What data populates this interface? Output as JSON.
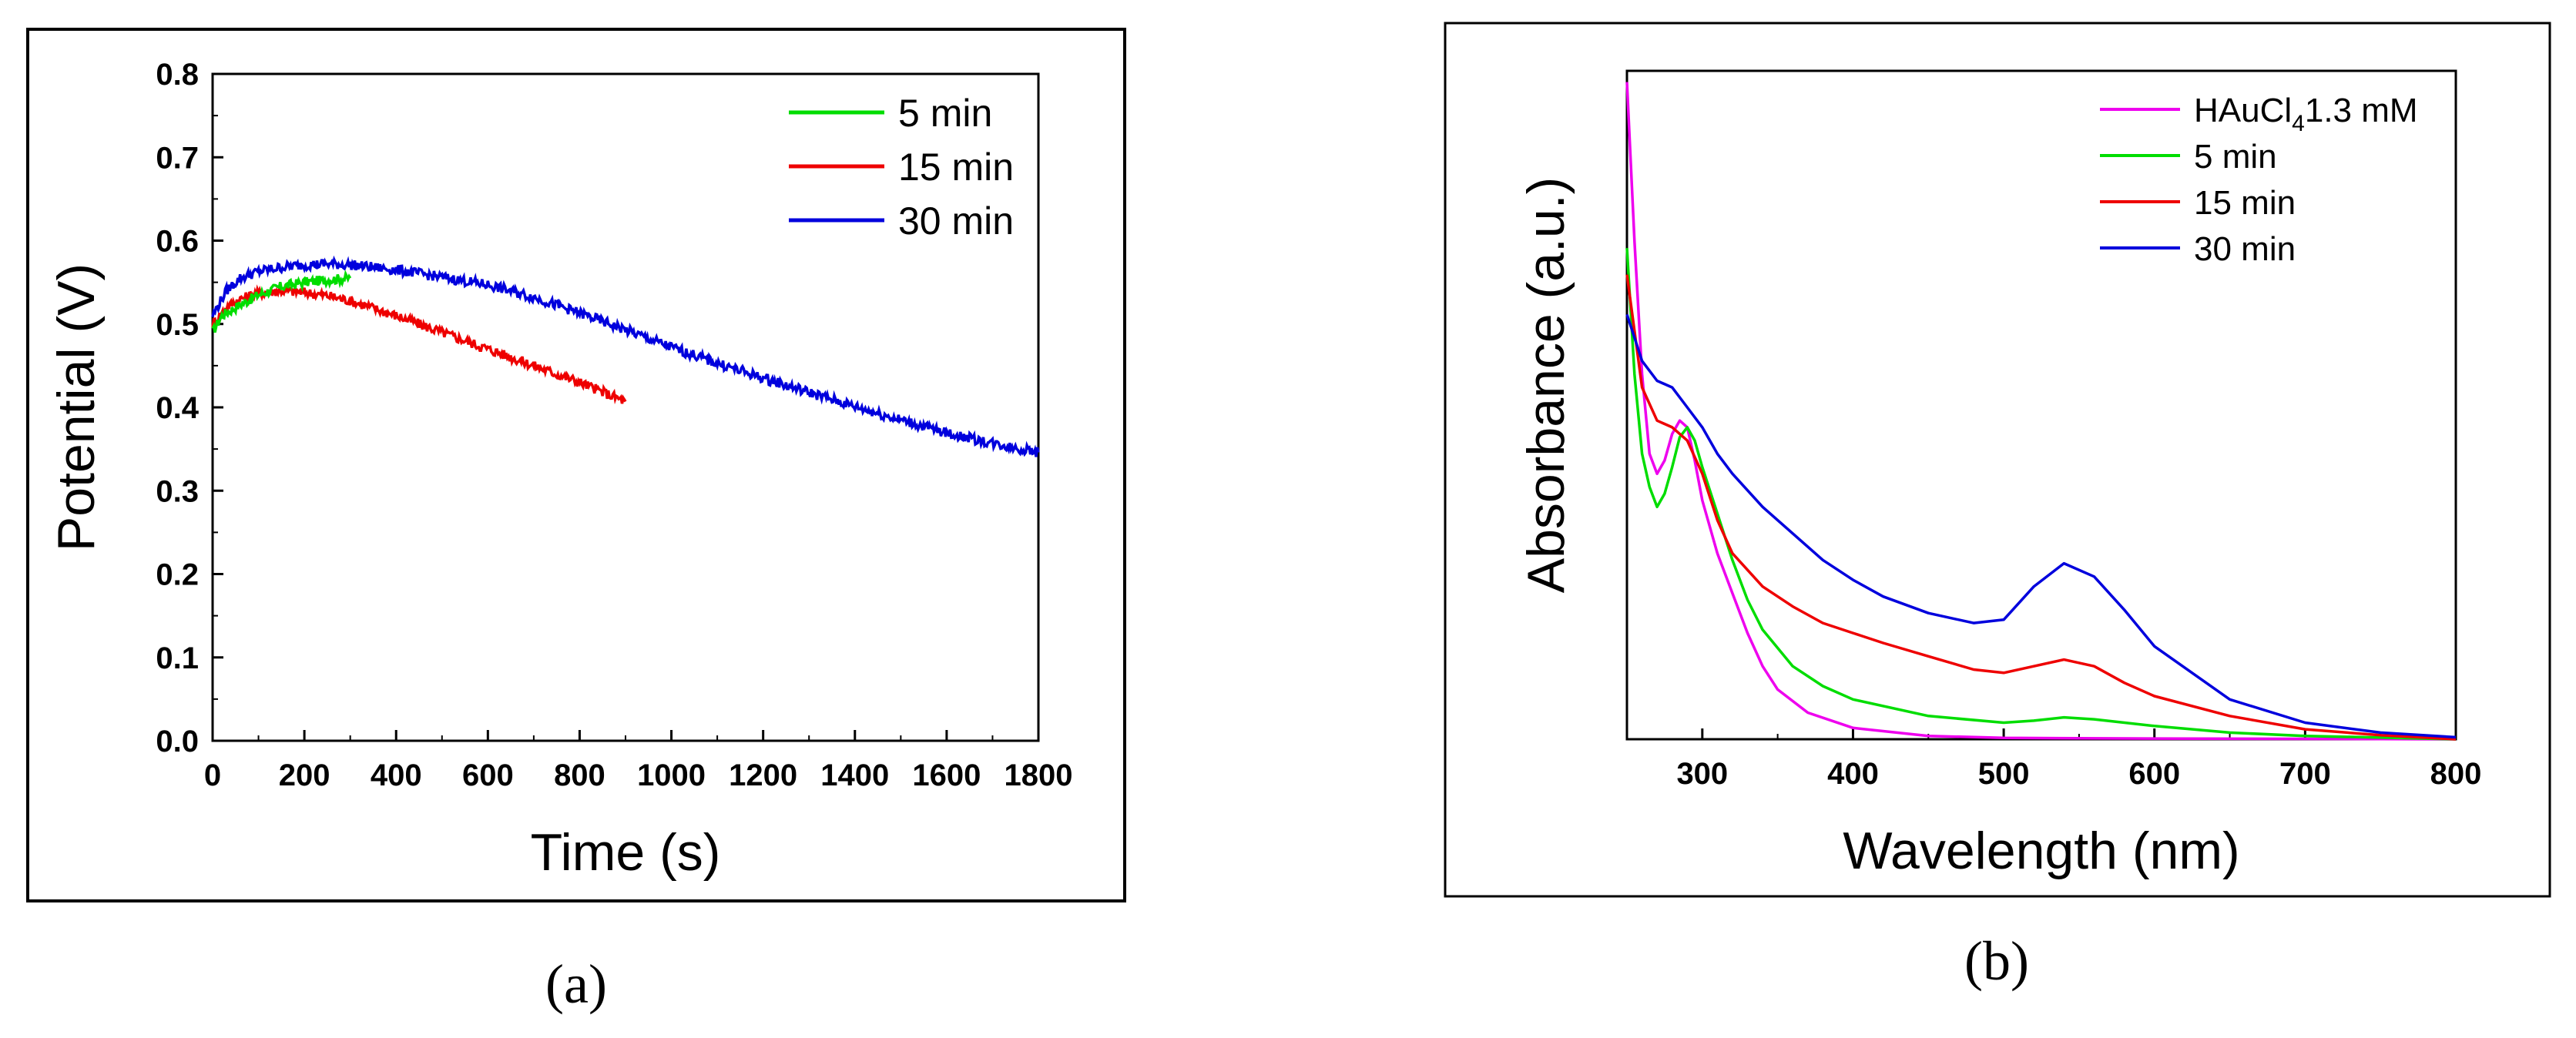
{
  "chart_data": [
    {
      "type": "line",
      "panel_caption": "(a)",
      "xlabel": "Time (s)",
      "ylabel": "Potential (V)",
      "xlim": [
        0,
        1800
      ],
      "ylim": [
        0.0,
        0.8
      ],
      "xticks": [
        "0",
        "200",
        "400",
        "600",
        "800",
        "1000",
        "1200",
        "1400",
        "1600",
        "1800"
      ],
      "yticks": [
        "0.0",
        "0.1",
        "0.2",
        "0.3",
        "0.4",
        "0.5",
        "0.6",
        "0.7",
        "0.8"
      ],
      "legend_position": "top-right",
      "series": [
        {
          "name": "5 min",
          "color": "#00dd00",
          "x": [
            0,
            20,
            50,
            100,
            150,
            200,
            250,
            300
          ],
          "y": [
            0.49,
            0.51,
            0.52,
            0.535,
            0.545,
            0.55,
            0.553,
            0.555
          ]
        },
        {
          "name": "15 min",
          "color": "#ee0000",
          "x": [
            0,
            30,
            60,
            100,
            150,
            200,
            250,
            300,
            400,
            500,
            600,
            700,
            800,
            900
          ],
          "y": [
            0.5,
            0.52,
            0.53,
            0.537,
            0.54,
            0.538,
            0.534,
            0.528,
            0.51,
            0.49,
            0.47,
            0.45,
            0.43,
            0.407
          ]
        },
        {
          "name": "30 min",
          "color": "#0000dd",
          "x": [
            0,
            30,
            60,
            100,
            150,
            200,
            250,
            300,
            400,
            500,
            600,
            700,
            800,
            900,
            1000,
            1100,
            1200,
            1300,
            1400,
            1500,
            1600,
            1700,
            1800
          ],
          "y": [
            0.51,
            0.54,
            0.555,
            0.563,
            0.568,
            0.571,
            0.572,
            0.571,
            0.565,
            0.556,
            0.547,
            0.532,
            0.513,
            0.493,
            0.472,
            0.453,
            0.435,
            0.418,
            0.401,
            0.385,
            0.369,
            0.357,
            0.346
          ]
        }
      ]
    },
    {
      "type": "line",
      "panel_caption": "(b)",
      "xlabel": "Wavelength (nm)",
      "ylabel": "Absorbance (a.u.)",
      "xlim": [
        250,
        800
      ],
      "ylim": [
        0,
        1.0
      ],
      "xticks": [
        "300",
        "400",
        "500",
        "600",
        "700",
        "800"
      ],
      "yticks": [],
      "legend_position": "top-right",
      "series": [
        {
          "name": "HAuCl",
          "subscript": "4",
          "name_suffix": "1.3 mM",
          "color": "#ee00ee",
          "x": [
            250,
            255,
            260,
            265,
            270,
            275,
            280,
            285,
            290,
            295,
            300,
            305,
            310,
            320,
            330,
            340,
            350,
            370,
            400,
            450,
            500,
            600,
            800
          ],
          "y": [
            0.99,
            0.75,
            0.55,
            0.43,
            0.4,
            0.42,
            0.46,
            0.48,
            0.47,
            0.42,
            0.36,
            0.32,
            0.28,
            0.22,
            0.16,
            0.11,
            0.075,
            0.04,
            0.017,
            0.005,
            0.002,
            0.001,
            0.0
          ]
        },
        {
          "name": "5 min",
          "color": "#00dd00",
          "x": [
            250,
            255,
            260,
            265,
            270,
            275,
            280,
            285,
            290,
            295,
            300,
            310,
            320,
            330,
            340,
            360,
            380,
            400,
            450,
            500,
            520,
            540,
            560,
            600,
            650,
            700,
            800
          ],
          "y": [
            0.74,
            0.55,
            0.43,
            0.38,
            0.35,
            0.37,
            0.41,
            0.455,
            0.47,
            0.45,
            0.41,
            0.34,
            0.27,
            0.21,
            0.165,
            0.11,
            0.08,
            0.06,
            0.035,
            0.025,
            0.028,
            0.033,
            0.03,
            0.02,
            0.01,
            0.005,
            0.0
          ]
        },
        {
          "name": "15 min",
          "color": "#ee0000",
          "x": [
            250,
            260,
            270,
            280,
            290,
            300,
            310,
            320,
            340,
            360,
            380,
            400,
            420,
            450,
            480,
            500,
            520,
            540,
            560,
            580,
            600,
            650,
            700,
            750,
            800
          ],
          "y": [
            0.7,
            0.53,
            0.48,
            0.47,
            0.45,
            0.4,
            0.33,
            0.28,
            0.23,
            0.2,
            0.175,
            0.16,
            0.145,
            0.125,
            0.105,
            0.1,
            0.11,
            0.12,
            0.11,
            0.085,
            0.065,
            0.035,
            0.015,
            0.006,
            0.0
          ]
        },
        {
          "name": "30 min",
          "color": "#0000dd",
          "x": [
            250,
            260,
            270,
            280,
            290,
            300,
            310,
            320,
            340,
            360,
            380,
            400,
            420,
            450,
            480,
            500,
            520,
            540,
            560,
            580,
            600,
            650,
            700,
            750,
            800
          ],
          "y": [
            0.64,
            0.57,
            0.54,
            0.53,
            0.5,
            0.47,
            0.43,
            0.4,
            0.35,
            0.31,
            0.27,
            0.24,
            0.215,
            0.19,
            0.175,
            0.18,
            0.23,
            0.265,
            0.245,
            0.195,
            0.14,
            0.06,
            0.025,
            0.01,
            0.003
          ]
        }
      ]
    }
  ]
}
